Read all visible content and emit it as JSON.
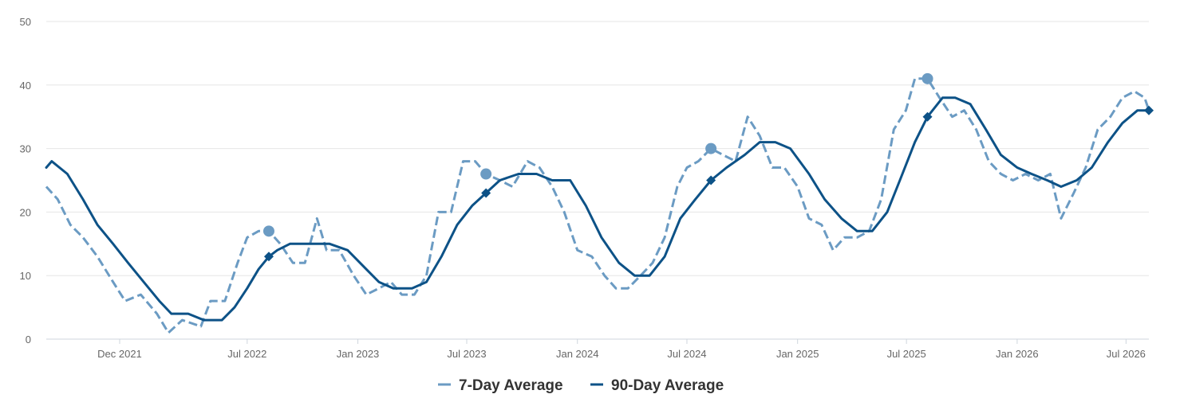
{
  "chart_data": {
    "type": "line",
    "title": "",
    "xlabel": "",
    "ylabel": "",
    "ylim": [
      0,
      50
    ],
    "yticks": [
      0,
      10,
      20,
      30,
      40,
      50
    ],
    "xlim": [
      "2021-08-01",
      "2026-08-08"
    ],
    "xticks": [
      {
        "date": "2021-12-01",
        "label": "Dec 2021"
      },
      {
        "date": "2022-07-01",
        "label": "Jul 2022"
      },
      {
        "date": "2023-01-01",
        "label": "Jan 2023"
      },
      {
        "date": "2023-07-01",
        "label": "Jul 2023"
      },
      {
        "date": "2024-01-01",
        "label": "Jan 2024"
      },
      {
        "date": "2024-07-01",
        "label": "Jul 2024"
      },
      {
        "date": "2025-01-01",
        "label": "Jan 2025"
      },
      {
        "date": "2025-07-01",
        "label": "Jul 2025"
      },
      {
        "date": "2026-01-01",
        "label": "Jan 2026"
      },
      {
        "date": "2026-07-01",
        "label": "Jul 2026"
      }
    ],
    "grid": true,
    "legend": "bottom-center",
    "series": [
      {
        "name": "7-Day Average",
        "color": "#6b9bc3",
        "style": "dashed",
        "points": [
          [
            "2021-08-01",
            24
          ],
          [
            "2021-08-20",
            22
          ],
          [
            "2021-09-10",
            18
          ],
          [
            "2021-10-01",
            16
          ],
          [
            "2021-10-25",
            13
          ],
          [
            "2021-11-20",
            9
          ],
          [
            "2021-12-10",
            6
          ],
          [
            "2022-01-05",
            7
          ],
          [
            "2022-02-01",
            4
          ],
          [
            "2022-02-20",
            1
          ],
          [
            "2022-03-15",
            3
          ],
          [
            "2022-04-15",
            2
          ],
          [
            "2022-05-01",
            6
          ],
          [
            "2022-05-25",
            6
          ],
          [
            "2022-06-15",
            12
          ],
          [
            "2022-07-01",
            16
          ],
          [
            "2022-07-20",
            17
          ],
          [
            "2022-08-06",
            17
          ],
          [
            "2022-08-25",
            15
          ],
          [
            "2022-09-15",
            12
          ],
          [
            "2022-10-05",
            12
          ],
          [
            "2022-10-25",
            19
          ],
          [
            "2022-11-10",
            14
          ],
          [
            "2022-12-01",
            14
          ],
          [
            "2022-12-25",
            10
          ],
          [
            "2023-01-15",
            7
          ],
          [
            "2023-02-05",
            8
          ],
          [
            "2023-02-25",
            9
          ],
          [
            "2023-03-15",
            7
          ],
          [
            "2023-04-05",
            7
          ],
          [
            "2023-04-25",
            10
          ],
          [
            "2023-05-15",
            20
          ],
          [
            "2023-06-05",
            20
          ],
          [
            "2023-06-25",
            28
          ],
          [
            "2023-07-15",
            28
          ],
          [
            "2023-08-02",
            26
          ],
          [
            "2023-08-25",
            25
          ],
          [
            "2023-09-15",
            24
          ],
          [
            "2023-10-10",
            28
          ],
          [
            "2023-10-30",
            27
          ],
          [
            "2023-11-20",
            24
          ],
          [
            "2023-12-10",
            20
          ],
          [
            "2024-01-01",
            14
          ],
          [
            "2024-01-25",
            13
          ],
          [
            "2024-02-15",
            10
          ],
          [
            "2024-03-05",
            8
          ],
          [
            "2024-03-25",
            8
          ],
          [
            "2024-04-15",
            10
          ],
          [
            "2024-05-05",
            12
          ],
          [
            "2024-05-25",
            16
          ],
          [
            "2024-06-15",
            24
          ],
          [
            "2024-07-01",
            27
          ],
          [
            "2024-07-20",
            28
          ],
          [
            "2024-08-10",
            30
          ],
          [
            "2024-08-30",
            29
          ],
          [
            "2024-09-20",
            28
          ],
          [
            "2024-10-10",
            35
          ],
          [
            "2024-10-30",
            32
          ],
          [
            "2024-11-20",
            27
          ],
          [
            "2024-12-10",
            27
          ],
          [
            "2025-01-01",
            24
          ],
          [
            "2025-01-20",
            19
          ],
          [
            "2025-02-10",
            18
          ],
          [
            "2025-03-01",
            14
          ],
          [
            "2025-03-20",
            16
          ],
          [
            "2025-04-10",
            16
          ],
          [
            "2025-04-30",
            17
          ],
          [
            "2025-05-20",
            22
          ],
          [
            "2025-06-10",
            33
          ],
          [
            "2025-06-30",
            36
          ],
          [
            "2025-07-15",
            41
          ],
          [
            "2025-08-05",
            41
          ],
          [
            "2025-08-25",
            38
          ],
          [
            "2025-09-15",
            35
          ],
          [
            "2025-10-05",
            36
          ],
          [
            "2025-10-25",
            33
          ],
          [
            "2025-11-15",
            28
          ],
          [
            "2025-12-05",
            26
          ],
          [
            "2025-12-25",
            25
          ],
          [
            "2026-01-15",
            26
          ],
          [
            "2026-02-05",
            25
          ],
          [
            "2026-02-25",
            26
          ],
          [
            "2026-03-15",
            19
          ],
          [
            "2026-04-05",
            23
          ],
          [
            "2026-04-25",
            27
          ],
          [
            "2026-05-15",
            33
          ],
          [
            "2026-06-05",
            35
          ],
          [
            "2026-06-25",
            38
          ],
          [
            "2026-07-15",
            39
          ],
          [
            "2026-08-01",
            38
          ],
          [
            "2026-08-08",
            36
          ]
        ],
        "markers": [
          [
            "2022-08-06",
            17
          ],
          [
            "2023-08-02",
            26
          ],
          [
            "2024-08-10",
            30
          ],
          [
            "2025-08-05",
            41
          ]
        ]
      },
      {
        "name": "90-Day Average",
        "color": "#0d5287",
        "style": "solid",
        "points": [
          [
            "2021-08-01",
            27
          ],
          [
            "2021-08-10",
            28
          ],
          [
            "2021-09-05",
            26
          ],
          [
            "2021-10-01",
            22
          ],
          [
            "2021-10-25",
            18
          ],
          [
            "2021-11-20",
            15
          ],
          [
            "2021-12-15",
            12
          ],
          [
            "2022-01-10",
            9
          ],
          [
            "2022-02-05",
            6
          ],
          [
            "2022-02-25",
            4
          ],
          [
            "2022-03-25",
            4
          ],
          [
            "2022-04-20",
            3
          ],
          [
            "2022-05-20",
            3
          ],
          [
            "2022-06-10",
            5
          ],
          [
            "2022-07-01",
            8
          ],
          [
            "2022-07-20",
            11
          ],
          [
            "2022-08-06",
            13
          ],
          [
            "2022-08-20",
            14
          ],
          [
            "2022-09-10",
            15
          ],
          [
            "2022-10-15",
            15
          ],
          [
            "2022-11-15",
            15
          ],
          [
            "2022-12-15",
            14
          ],
          [
            "2023-01-15",
            11
          ],
          [
            "2023-02-05",
            9
          ],
          [
            "2023-03-01",
            8
          ],
          [
            "2023-04-01",
            8
          ],
          [
            "2023-04-25",
            9
          ],
          [
            "2023-05-20",
            13
          ],
          [
            "2023-06-15",
            18
          ],
          [
            "2023-07-10",
            21
          ],
          [
            "2023-08-02",
            23
          ],
          [
            "2023-08-25",
            25
          ],
          [
            "2023-09-25",
            26
          ],
          [
            "2023-10-25",
            26
          ],
          [
            "2023-11-20",
            25
          ],
          [
            "2023-12-20",
            25
          ],
          [
            "2024-01-15",
            21
          ],
          [
            "2024-02-10",
            16
          ],
          [
            "2024-03-10",
            12
          ],
          [
            "2024-04-05",
            10
          ],
          [
            "2024-04-30",
            10
          ],
          [
            "2024-05-25",
            13
          ],
          [
            "2024-06-20",
            19
          ],
          [
            "2024-07-15",
            22
          ],
          [
            "2024-08-10",
            25
          ],
          [
            "2024-09-05",
            27
          ],
          [
            "2024-10-05",
            29
          ],
          [
            "2024-10-30",
            31
          ],
          [
            "2024-11-25",
            31
          ],
          [
            "2024-12-20",
            30
          ],
          [
            "2025-01-20",
            26
          ],
          [
            "2025-02-15",
            22
          ],
          [
            "2025-03-15",
            19
          ],
          [
            "2025-04-10",
            17
          ],
          [
            "2025-05-05",
            17
          ],
          [
            "2025-05-30",
            20
          ],
          [
            "2025-06-20",
            25
          ],
          [
            "2025-07-15",
            31
          ],
          [
            "2025-08-05",
            35
          ],
          [
            "2025-08-30",
            38
          ],
          [
            "2025-09-20",
            38
          ],
          [
            "2025-10-15",
            37
          ],
          [
            "2025-11-10",
            33
          ],
          [
            "2025-12-05",
            29
          ],
          [
            "2026-01-01",
            27
          ],
          [
            "2026-01-25",
            26
          ],
          [
            "2026-02-20",
            25
          ],
          [
            "2026-03-15",
            24
          ],
          [
            "2026-04-10",
            25
          ],
          [
            "2026-05-05",
            27
          ],
          [
            "2026-06-01",
            31
          ],
          [
            "2026-06-25",
            34
          ],
          [
            "2026-07-20",
            36
          ],
          [
            "2026-08-08",
            36
          ]
        ],
        "markers": [
          [
            "2022-08-06",
            13
          ],
          [
            "2023-08-02",
            23
          ],
          [
            "2024-08-10",
            25
          ],
          [
            "2025-08-05",
            35
          ],
          [
            "2026-08-08",
            36
          ]
        ]
      }
    ]
  }
}
